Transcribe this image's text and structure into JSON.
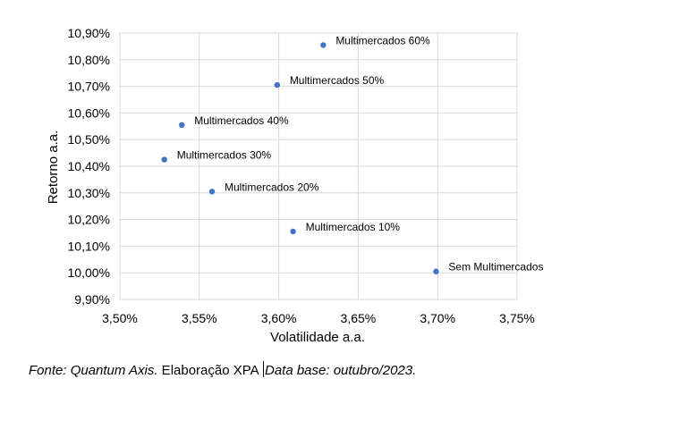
{
  "chart_data": {
    "type": "scatter",
    "xlabel": "Volatilidade a.a.",
    "ylabel": "Retorno a.a.",
    "xlim": [
      3.5,
      3.75
    ],
    "ylim": [
      9.9,
      10.9
    ],
    "x_ticks": [
      "3,50%",
      "3,55%",
      "3,60%",
      "3,65%",
      "3,70%",
      "3,75%"
    ],
    "y_ticks": [
      "10,90%",
      "10,80%",
      "10,70%",
      "10,60%",
      "10,50%",
      "10,40%",
      "10,30%",
      "10,20%",
      "10,10%",
      "10,00%",
      "9,90%"
    ],
    "grid": true,
    "color": "#4472c4",
    "points": [
      {
        "label": "Multimercados 60%",
        "x": 3.628,
        "y": 10.855
      },
      {
        "label": "Multimercados 50%",
        "x": 3.599,
        "y": 10.705
      },
      {
        "label": "Multimercados 40%",
        "x": 3.539,
        "y": 10.555
      },
      {
        "label": "Multimercados 30%",
        "x": 3.528,
        "y": 10.425
      },
      {
        "label": "Multimercados 20%",
        "x": 3.558,
        "y": 10.305
      },
      {
        "label": "Multimercados 10%",
        "x": 3.609,
        "y": 10.155
      },
      {
        "label": "Sem Multimercados",
        "x": 3.699,
        "y": 10.005
      }
    ]
  },
  "footer": {
    "source_label": "Fonte: Quantum Axis.",
    "elaboration": " Elaboração XPA ",
    "date_label": "Data base: outubro/2023."
  }
}
